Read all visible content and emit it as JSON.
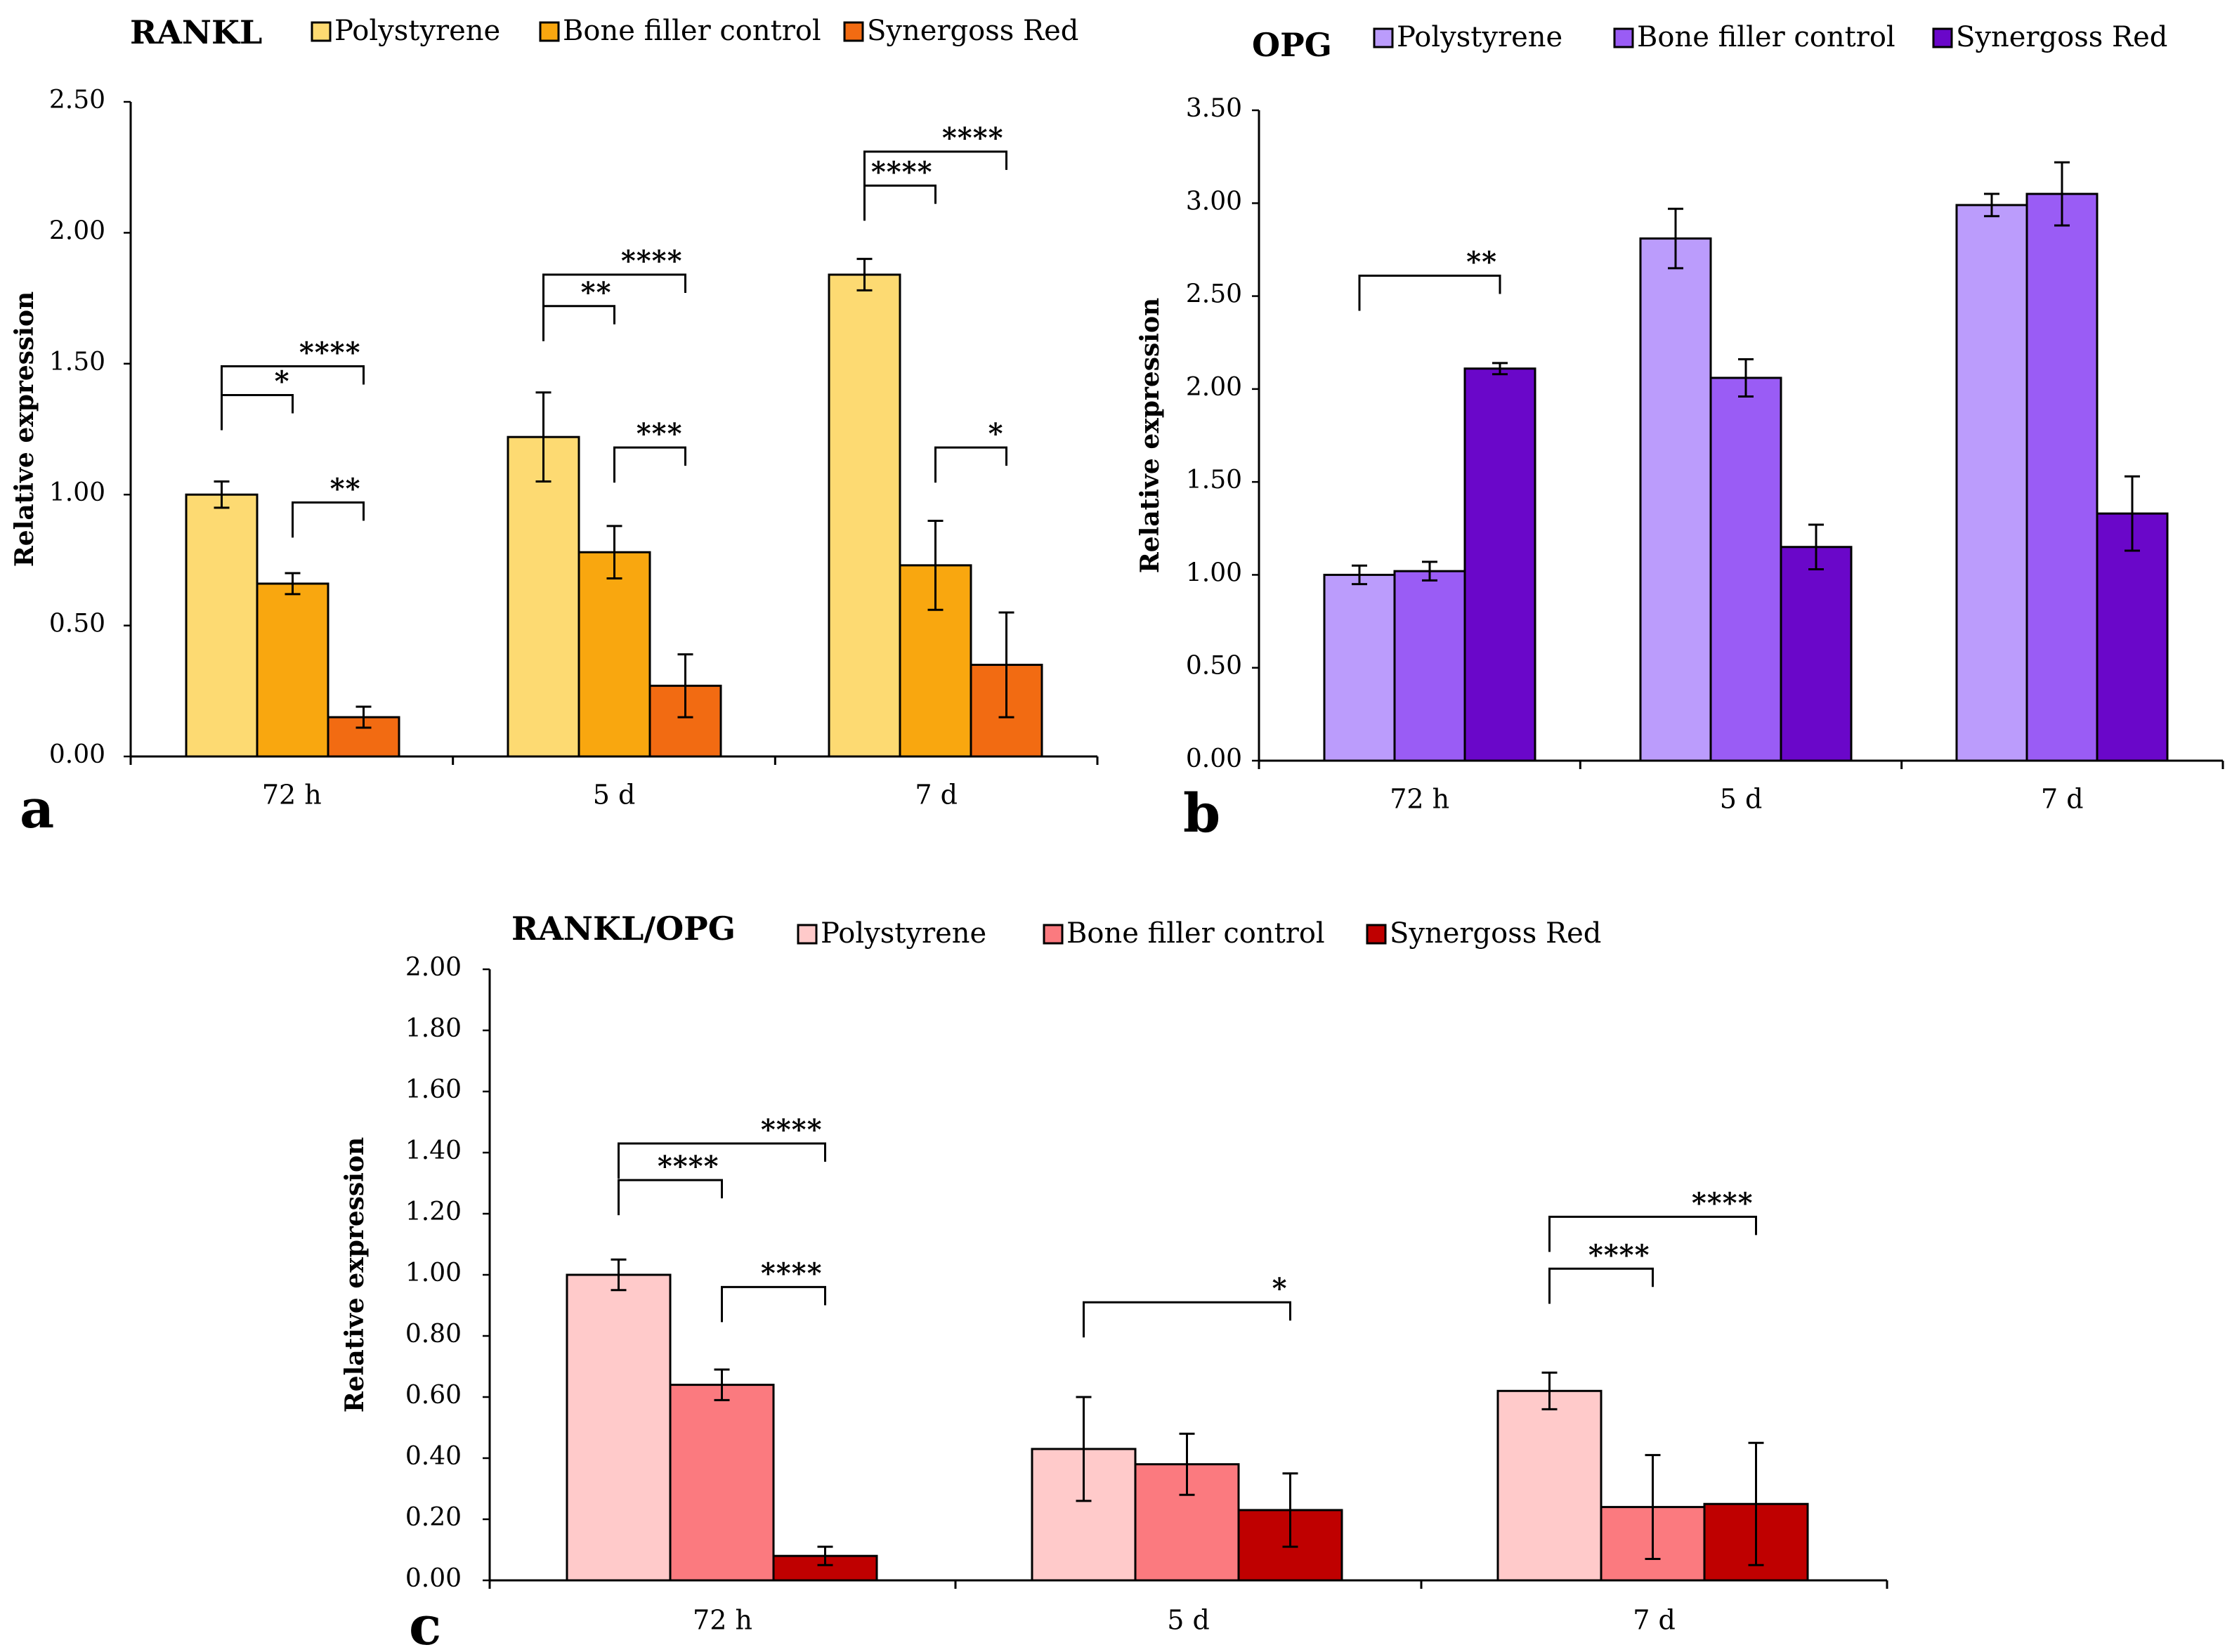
{
  "chart_data": [
    {
      "type": "bar",
      "panel": "a",
      "title": "RANKL",
      "ylabel": "Relative expression",
      "categories": [
        "72 h",
        "5 d",
        "7 d"
      ],
      "ylim": [
        0,
        2.5
      ],
      "yticks": [
        0,
        0.5,
        1.0,
        1.5,
        2.0,
        2.5
      ],
      "ytick_labels": [
        "0.00",
        "0.50",
        "1.00",
        "1.50",
        "2.00",
        "2.50"
      ],
      "legend_position": "top",
      "series": [
        {
          "name": "Polystyrene",
          "color": "#FDDA72",
          "values": [
            1.0,
            1.22,
            1.84
          ],
          "errors": [
            0.05,
            0.17,
            0.06
          ]
        },
        {
          "name": "Bone filler control",
          "color": "#F9A70F",
          "values": [
            0.66,
            0.78,
            0.73
          ],
          "errors": [
            0.04,
            0.1,
            0.17
          ]
        },
        {
          "name": "Synergoss Red",
          "color": "#F26B12",
          "values": [
            0.15,
            0.27,
            0.35
          ],
          "errors": [
            0.04,
            0.12,
            0.2
          ]
        }
      ],
      "significance": [
        {
          "category": 0,
          "from": 0,
          "to": 1,
          "y": 1.38,
          "label": "*"
        },
        {
          "category": 0,
          "from": 0,
          "to": 2,
          "y": 1.49,
          "label": "****"
        },
        {
          "category": 0,
          "from": 1,
          "to": 2,
          "y": 0.97,
          "label": "**"
        },
        {
          "category": 1,
          "from": 0,
          "to": 1,
          "y": 1.72,
          "label": "**"
        },
        {
          "category": 1,
          "from": 0,
          "to": 2,
          "y": 1.84,
          "label": "****"
        },
        {
          "category": 1,
          "from": 1,
          "to": 2,
          "y": 1.18,
          "label": "***"
        },
        {
          "category": 2,
          "from": 0,
          "to": 1,
          "y": 2.18,
          "label": "****"
        },
        {
          "category": 2,
          "from": 0,
          "to": 2,
          "y": 2.31,
          "label": "****"
        },
        {
          "category": 2,
          "from": 1,
          "to": 2,
          "y": 1.18,
          "label": "*"
        }
      ]
    },
    {
      "type": "bar",
      "panel": "b",
      "title": "OPG",
      "ylabel": "Relative expression",
      "categories": [
        "72 h",
        "5 d",
        "7 d"
      ],
      "ylim": [
        0,
        3.5
      ],
      "yticks": [
        0,
        0.5,
        1.0,
        1.5,
        2.0,
        2.5,
        3.0,
        3.5
      ],
      "ytick_labels": [
        "0.00",
        "0.50",
        "1.00",
        "1.50",
        "2.00",
        "2.50",
        "3.00",
        "3.50"
      ],
      "legend_position": "top",
      "series": [
        {
          "name": "Polystyrene",
          "color": "#BB9CFC",
          "values": [
            1.0,
            2.81,
            2.99
          ],
          "errors": [
            0.05,
            0.16,
            0.06
          ]
        },
        {
          "name": "Bone filler control",
          "color": "#9A5CF5",
          "values": [
            1.02,
            2.06,
            3.05
          ],
          "errors": [
            0.05,
            0.1,
            0.17
          ]
        },
        {
          "name": "Synergoss Red",
          "color": "#6A07C9",
          "values": [
            2.11,
            1.15,
            1.33
          ],
          "errors": [
            0.03,
            0.12,
            0.2
          ]
        }
      ],
      "significance": [
        {
          "category": 0,
          "from": 0,
          "to": 2,
          "y": 2.61,
          "label": "**"
        }
      ]
    },
    {
      "type": "bar",
      "panel": "c",
      "title": "RANKL/OPG",
      "ylabel": "Relative expression",
      "categories": [
        "72 h",
        "5 d",
        "7 d"
      ],
      "ylim": [
        0,
        2.0
      ],
      "yticks": [
        0,
        0.2,
        0.4,
        0.6,
        0.8,
        1.0,
        1.2,
        1.4,
        1.6,
        1.8,
        2.0
      ],
      "ytick_labels": [
        "0.00",
        "0.20",
        "0.40",
        "0.60",
        "0.80",
        "1.00",
        "1.20",
        "1.40",
        "1.60",
        "1.80",
        "2.00"
      ],
      "legend_position": "top",
      "series": [
        {
          "name": "Polystyrene",
          "color": "#FFCACA",
          "values": [
            1.0,
            0.43,
            0.62
          ],
          "errors": [
            0.05,
            0.17,
            0.06
          ]
        },
        {
          "name": "Bone filler control",
          "color": "#FB7A7F",
          "values": [
            0.64,
            0.38,
            0.24
          ],
          "errors": [
            0.05,
            0.1,
            0.17
          ]
        },
        {
          "name": "Synergoss Red",
          "color": "#BF0000",
          "values": [
            0.08,
            0.23,
            0.25
          ],
          "errors": [
            0.03,
            0.12,
            0.2
          ]
        }
      ],
      "significance": [
        {
          "category": 0,
          "from": 0,
          "to": 1,
          "y": 1.31,
          "label": "****"
        },
        {
          "category": 0,
          "from": 0,
          "to": 2,
          "y": 1.43,
          "label": "****"
        },
        {
          "category": 0,
          "from": 1,
          "to": 2,
          "y": 0.96,
          "label": "****"
        },
        {
          "category": 1,
          "from": 0,
          "to": 2,
          "y": 0.91,
          "label": "*"
        },
        {
          "category": 2,
          "from": 0,
          "to": 1,
          "y": 1.02,
          "label": "****"
        },
        {
          "category": 2,
          "from": 0,
          "to": 2,
          "y": 1.19,
          "label": "****"
        }
      ]
    }
  ]
}
